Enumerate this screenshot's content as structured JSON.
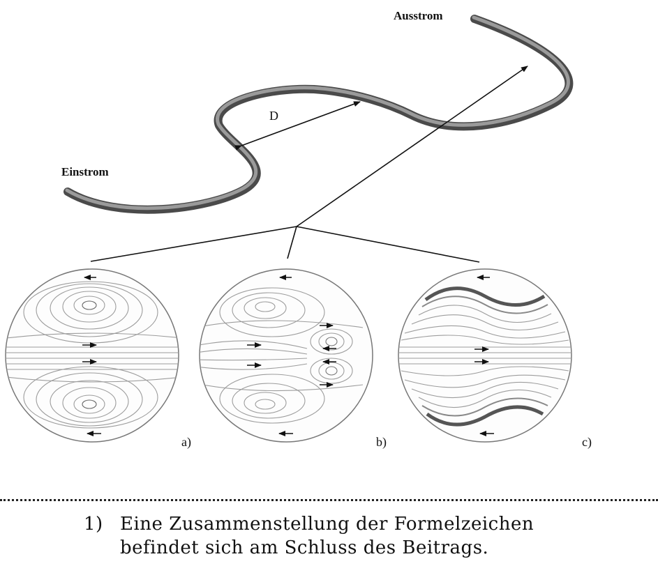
{
  "labels": {
    "outflow": "Ausstrom",
    "inflow": "Einstrom",
    "distance": "D"
  },
  "panels": [
    {
      "id": "a",
      "label": "a)"
    },
    {
      "id": "b",
      "label": "b)"
    },
    {
      "id": "c",
      "label": "c)"
    }
  ],
  "footnote": {
    "number": "1)",
    "line1": "Eine Zusammenstellung der Formelzeichen",
    "line2": "befindet sich am Schluss des Beitrags."
  }
}
